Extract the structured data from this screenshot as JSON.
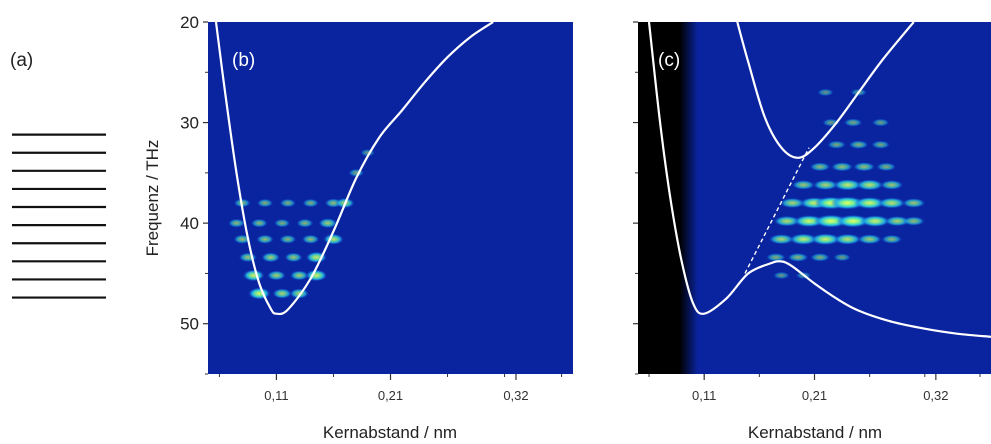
{
  "panel_labels": {
    "a": "(a)",
    "b": "(b)",
    "c": "(c)"
  },
  "y_axis": {
    "label": "Frequenz / THz",
    "ticks": [
      "20",
      "30",
      "40",
      "50"
    ]
  },
  "x_axis": {
    "label": "Kernabstand / nm",
    "ticks": [
      "0,11",
      "0,21",
      "0,32"
    ]
  },
  "colors": {
    "background": "#0a24a0",
    "curve": "#ffffff",
    "blob_core": "#c8ff50",
    "blob_mid": "#30d0e0",
    "excluded_region": "#000000"
  },
  "chart_data": [
    {
      "type": "heatmap",
      "panel": "(a)",
      "level_lines_freq": [
        30.8,
        32.6,
        34.4,
        36.2,
        38.0,
        39.8,
        41.6,
        43.4,
        45.2,
        47.0
      ]
    },
    {
      "type": "heatmap",
      "panel": "(b)",
      "xlabel": "Kernabstand / nm",
      "ylabel": "Frequenz / THz",
      "xlim": [
        0.05,
        0.37
      ],
      "ylim": [
        55,
        20
      ],
      "x_ticks": [
        0.11,
        0.21,
        0.32
      ],
      "y_ticks": [
        20,
        30,
        40,
        50
      ],
      "potential_curve": {
        "x": [
          0.057,
          0.065,
          0.075,
          0.085,
          0.095,
          0.105,
          0.11,
          0.12,
          0.14,
          0.16,
          0.18,
          0.2,
          0.22,
          0.24,
          0.26,
          0.28,
          0.3
        ],
        "y": [
          20,
          27,
          35,
          41.5,
          46,
          48.5,
          49,
          48.6,
          45.5,
          40.8,
          35.5,
          31.5,
          28.8,
          26,
          23.5,
          21.5,
          20
        ]
      },
      "intensity_levels": [
        {
          "freq": 38,
          "x": [
            0.08,
            0.1,
            0.12,
            0.14,
            0.16,
            0.17
          ],
          "intensity": [
            0.4,
            0.35,
            0.35,
            0.35,
            0.45,
            0.6
          ]
        },
        {
          "freq": 40,
          "x": [
            0.075,
            0.095,
            0.115,
            0.135,
            0.155
          ],
          "intensity": [
            0.4,
            0.4,
            0.35,
            0.4,
            0.55
          ]
        },
        {
          "freq": 41.6,
          "x": [
            0.08,
            0.1,
            0.12,
            0.14,
            0.16
          ],
          "intensity": [
            0.45,
            0.45,
            0.4,
            0.45,
            0.7
          ]
        },
        {
          "freq": 43.4,
          "x": [
            0.085,
            0.105,
            0.125,
            0.145
          ],
          "intensity": [
            0.5,
            0.55,
            0.5,
            0.75
          ]
        },
        {
          "freq": 45.2,
          "x": [
            0.09,
            0.11,
            0.13,
            0.145
          ],
          "intensity": [
            0.8,
            0.55,
            0.55,
            0.8
          ]
        },
        {
          "freq": 47.0,
          "x": [
            0.095,
            0.115,
            0.13
          ],
          "intensity": [
            0.85,
            0.6,
            0.6
          ]
        },
        {
          "freq": 35,
          "x": [
            0.18
          ],
          "intensity": [
            0.3
          ]
        },
        {
          "freq": 33,
          "x": [
            0.19
          ],
          "intensity": [
            0.2
          ]
        }
      ]
    },
    {
      "type": "heatmap",
      "panel": "(c)",
      "xlabel": "Kernabstand / nm",
      "xlim": [
        0.05,
        0.37
      ],
      "ylim": [
        55,
        20
      ],
      "x_ticks": [
        0.11,
        0.21,
        0.32
      ],
      "y_ticks": [
        20,
        30,
        40,
        50
      ],
      "excluded_region_x": [
        0.05,
        0.095
      ],
      "lower_curve": {
        "x": [
          0.06,
          0.07,
          0.08,
          0.09,
          0.1,
          0.11,
          0.13,
          0.15,
          0.17,
          0.18,
          0.19,
          0.21,
          0.23,
          0.25,
          0.28,
          0.31,
          0.34,
          0.37
        ],
        "y": [
          20,
          30,
          38,
          44,
          48,
          49,
          47.5,
          45,
          44,
          43.8,
          44.3,
          46,
          47.5,
          48.7,
          49.8,
          50.5,
          51,
          51.3
        ]
      },
      "upper_curve": {
        "x": [
          0.14,
          0.15,
          0.165,
          0.18,
          0.195,
          0.21,
          0.23,
          0.25,
          0.27,
          0.29,
          0.3
        ],
        "y": [
          20,
          24,
          29.5,
          32.5,
          33.5,
          32.5,
          30,
          27,
          24,
          21.3,
          20
        ]
      },
      "dashed_line": {
        "x": [
          0.147,
          0.205
        ],
        "y": [
          45,
          32.5
        ]
      },
      "intensity_levels": [
        {
          "freq": 27,
          "x": [
            0.22,
            0.25
          ],
          "intensity": [
            0.2,
            0.2
          ]
        },
        {
          "freq": 30,
          "x": [
            0.225,
            0.245,
            0.27
          ],
          "intensity": [
            0.25,
            0.3,
            0.25
          ]
        },
        {
          "freq": 32.2,
          "x": [
            0.23,
            0.25,
            0.27
          ],
          "intensity": [
            0.3,
            0.35,
            0.3
          ]
        },
        {
          "freq": 34.4,
          "x": [
            0.215,
            0.235,
            0.255,
            0.275
          ],
          "intensity": [
            0.4,
            0.45,
            0.45,
            0.35
          ]
        },
        {
          "freq": 36.2,
          "x": [
            0.2,
            0.22,
            0.24,
            0.26,
            0.28
          ],
          "intensity": [
            0.5,
            0.6,
            0.75,
            0.7,
            0.5
          ]
        },
        {
          "freq": 38.0,
          "x": [
            0.19,
            0.21,
            0.225,
            0.24,
            0.26,
            0.28,
            0.3
          ],
          "intensity": [
            0.6,
            0.8,
            0.95,
            1.0,
            0.85,
            0.7,
            0.5
          ]
        },
        {
          "freq": 39.8,
          "x": [
            0.185,
            0.205,
            0.225,
            0.245,
            0.265,
            0.285,
            0.3
          ],
          "intensity": [
            0.65,
            0.85,
            1.0,
            0.95,
            0.8,
            0.6,
            0.45
          ]
        },
        {
          "freq": 41.6,
          "x": [
            0.18,
            0.2,
            0.22,
            0.24,
            0.26,
            0.28
          ],
          "intensity": [
            0.6,
            0.75,
            0.8,
            0.7,
            0.55,
            0.4
          ]
        },
        {
          "freq": 43.4,
          "x": [
            0.175,
            0.195,
            0.215,
            0.235
          ],
          "intensity": [
            0.35,
            0.4,
            0.35,
            0.25
          ]
        },
        {
          "freq": 45.2,
          "x": [
            0.18,
            0.2
          ],
          "intensity": [
            0.2,
            0.15
          ]
        }
      ]
    }
  ]
}
